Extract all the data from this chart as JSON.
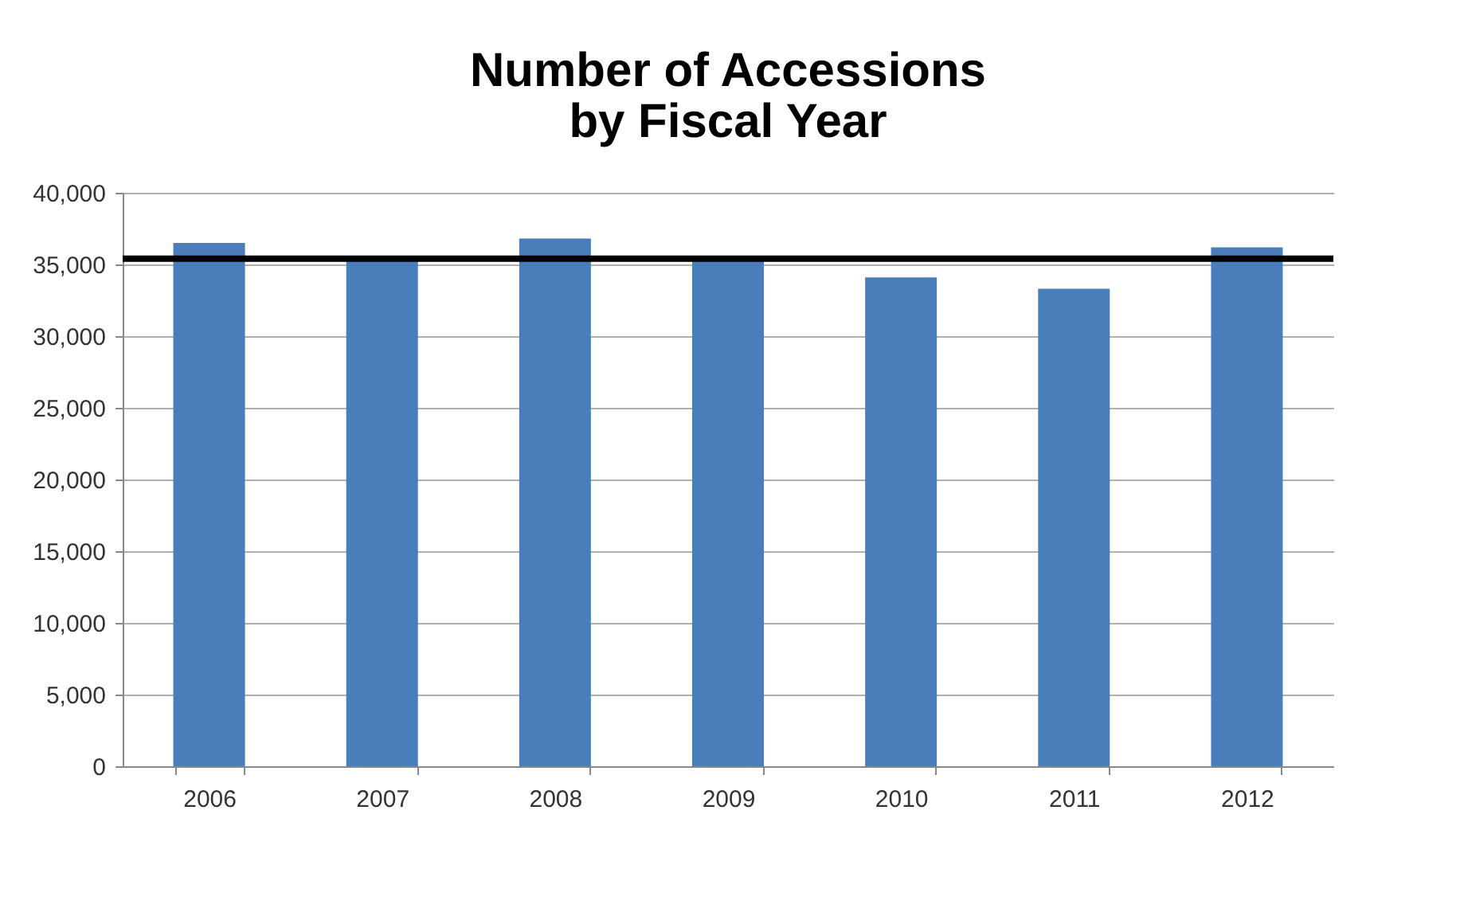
{
  "chart_data": {
    "type": "bar",
    "title": "Number of Accessions\nby Fiscal Year",
    "categories": [
      "2006",
      "2007",
      "2008",
      "2009",
      "2010",
      "2011",
      "2012"
    ],
    "values": [
      36500,
      35400,
      36800,
      35400,
      34100,
      33300,
      36200
    ],
    "color": "#4a7ebb",
    "ylim": [
      0,
      40000
    ],
    "yticks": [
      {
        "value": 0,
        "label": "0"
      },
      {
        "value": 5000,
        "label": "5,000"
      },
      {
        "value": 10000,
        "label": "10,000"
      },
      {
        "value": 15000,
        "label": "15,000"
      },
      {
        "value": 20000,
        "label": "20,000"
      },
      {
        "value": 25000,
        "label": "25,000"
      },
      {
        "value": 30000,
        "label": "30,000"
      },
      {
        "value": 35000,
        "label": "35,000"
      },
      {
        "value": 40000,
        "label": "40,000"
      }
    ],
    "grid": "y",
    "ref_lines": [
      {
        "axis": "y",
        "value": 35400,
        "color": "#000000",
        "line_style": "solid"
      }
    ]
  }
}
